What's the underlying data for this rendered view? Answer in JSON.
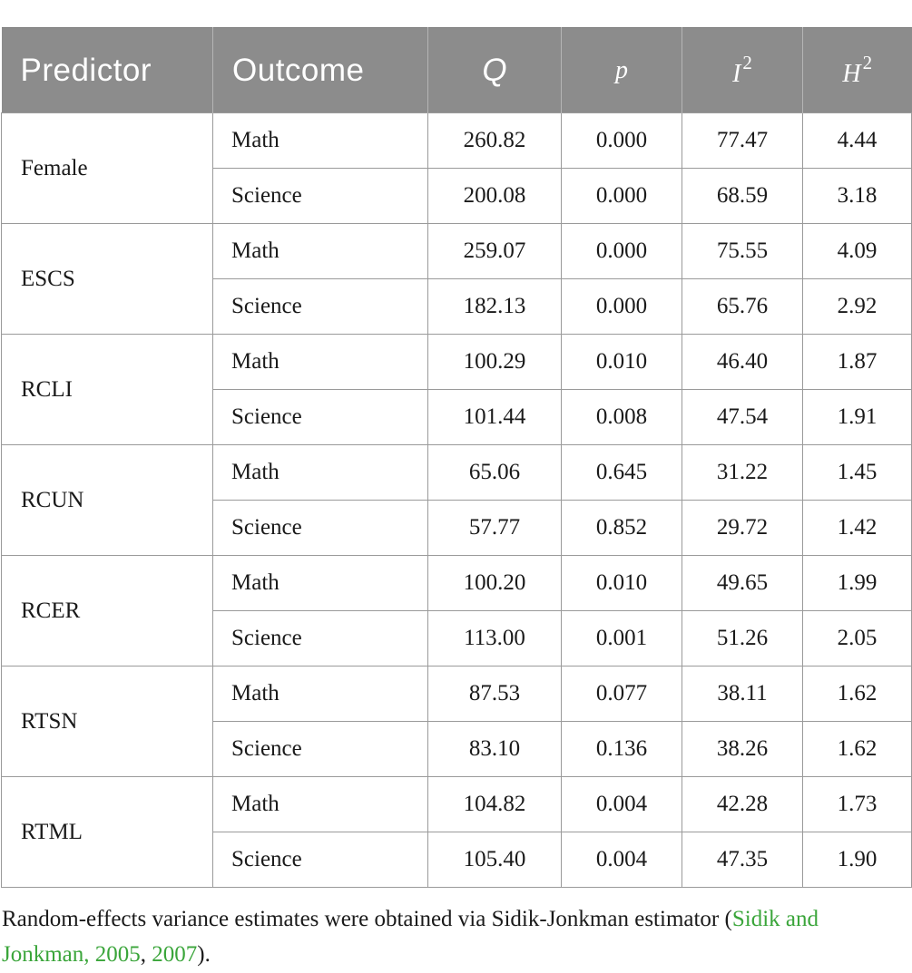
{
  "table": {
    "headers": {
      "predictor": "Predictor",
      "outcome": "Outcome",
      "q": "Q",
      "p": "p",
      "i2_base": "I",
      "i2_exp": "2",
      "h2_base": "H",
      "h2_exp": "2"
    },
    "groups": [
      {
        "predictor": "Female",
        "rows": [
          {
            "outcome": "Math",
            "q": "260.82",
            "p": "0.000",
            "i2": "77.47",
            "h2": "4.44"
          },
          {
            "outcome": "Science",
            "q": "200.08",
            "p": "0.000",
            "i2": "68.59",
            "h2": "3.18"
          }
        ]
      },
      {
        "predictor": "ESCS",
        "rows": [
          {
            "outcome": "Math",
            "q": "259.07",
            "p": "0.000",
            "i2": "75.55",
            "h2": "4.09"
          },
          {
            "outcome": "Science",
            "q": "182.13",
            "p": "0.000",
            "i2": "65.76",
            "h2": "2.92"
          }
        ]
      },
      {
        "predictor": "RCLI",
        "rows": [
          {
            "outcome": "Math",
            "q": "100.29",
            "p": "0.010",
            "i2": "46.40",
            "h2": "1.87"
          },
          {
            "outcome": "Science",
            "q": "101.44",
            "p": "0.008",
            "i2": "47.54",
            "h2": "1.91"
          }
        ]
      },
      {
        "predictor": "RCUN",
        "rows": [
          {
            "outcome": "Math",
            "q": "65.06",
            "p": "0.645",
            "i2": "31.22",
            "h2": "1.45"
          },
          {
            "outcome": "Science",
            "q": "57.77",
            "p": "0.852",
            "i2": "29.72",
            "h2": "1.42"
          }
        ]
      },
      {
        "predictor": "RCER",
        "rows": [
          {
            "outcome": "Math",
            "q": "100.20",
            "p": "0.010",
            "i2": "49.65",
            "h2": "1.99"
          },
          {
            "outcome": "Science",
            "q": "113.00",
            "p": "0.001",
            "i2": "51.26",
            "h2": "2.05"
          }
        ]
      },
      {
        "predictor": "RTSN",
        "rows": [
          {
            "outcome": "Math",
            "q": "87.53",
            "p": "0.077",
            "i2": "38.11",
            "h2": "1.62"
          },
          {
            "outcome": "Science",
            "q": "83.10",
            "p": "0.136",
            "i2": "38.26",
            "h2": "1.62"
          }
        ]
      },
      {
        "predictor": "RTML",
        "rows": [
          {
            "outcome": "Math",
            "q": "104.82",
            "p": "0.004",
            "i2": "42.28",
            "h2": "1.73"
          },
          {
            "outcome": "Science",
            "q": "105.40",
            "p": "0.004",
            "i2": "47.35",
            "h2": "1.90"
          }
        ]
      }
    ]
  },
  "footnote": {
    "text_before": "Random-effects variance estimates were obtained via Sidik-Jonkman estimator (",
    "cite_1": "Sidik and Jonkman, 2005",
    "separator": ", ",
    "cite_2": "2007",
    "text_after": ")."
  },
  "colors": {
    "header_bg": "#8c8c8c",
    "header_text": "#ffffff",
    "citation_link": "#3aa53a",
    "border": "#9a9a9a"
  }
}
